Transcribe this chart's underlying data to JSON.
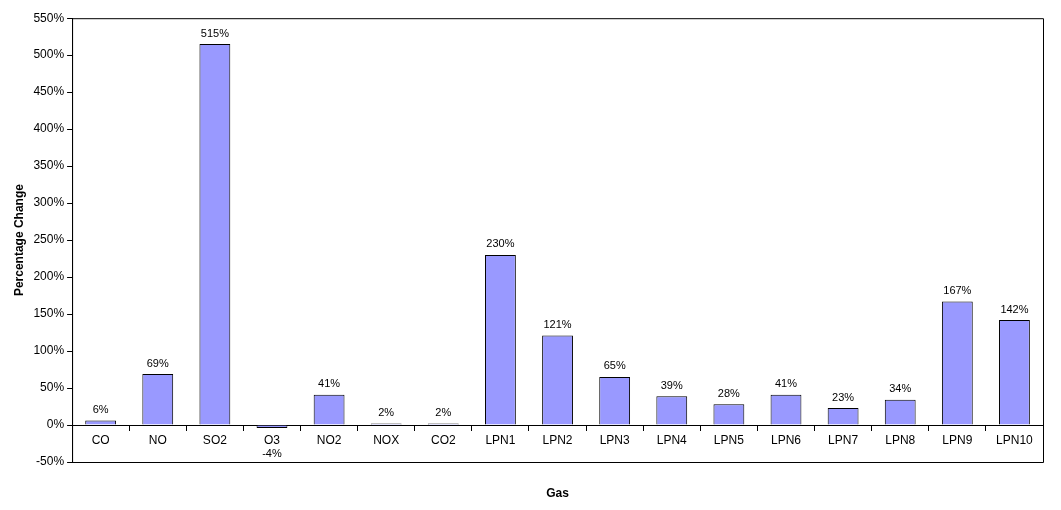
{
  "chart_data": {
    "type": "bar",
    "xlabel": "Gas",
    "ylabel": "Percentage Change",
    "categories": [
      "CO",
      "NO",
      "SO2",
      "O3",
      "NO2",
      "NOX",
      "CO2",
      "LPN1",
      "LPN2",
      "LPN3",
      "LPN4",
      "LPN5",
      "LPN6",
      "LPN7",
      "LPN8",
      "LPN9",
      "LPN10"
    ],
    "values": [
      6,
      69,
      515,
      -4,
      41,
      2,
      2,
      230,
      121,
      65,
      39,
      28,
      41,
      23,
      34,
      167,
      142
    ],
    "value_labels": [
      "6%",
      "69%",
      "515%",
      "-4%",
      "41%",
      "2%",
      "2%",
      "230%",
      "121%",
      "65%",
      "39%",
      "28%",
      "41%",
      "23%",
      "34%",
      "167%",
      "142%"
    ],
    "color": "#9999ff",
    "ylim": [
      -50,
      550
    ],
    "yticks": [
      {
        "value": -50,
        "label": "-50%"
      },
      {
        "value": 0,
        "label": "0%"
      },
      {
        "value": 50,
        "label": "50%"
      },
      {
        "value": 100,
        "label": "100%"
      },
      {
        "value": 150,
        "label": "150%"
      },
      {
        "value": 200,
        "label": "200%"
      },
      {
        "value": 250,
        "label": "250%"
      },
      {
        "value": 300,
        "label": "300%"
      },
      {
        "value": 350,
        "label": "350%"
      },
      {
        "value": 400,
        "label": "400%"
      },
      {
        "value": 450,
        "label": "450%"
      },
      {
        "value": 500,
        "label": "500%"
      },
      {
        "value": 550,
        "label": "550%"
      }
    ],
    "grid": false,
    "legend": false
  }
}
